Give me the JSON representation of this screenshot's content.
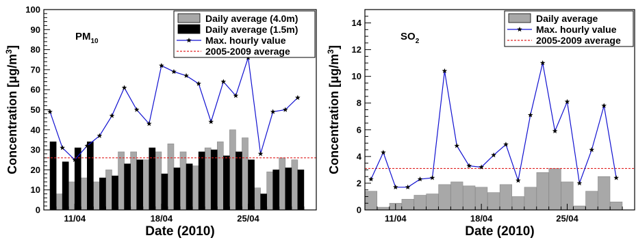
{
  "colors": {
    "bar_4m": "#a8a8a8",
    "bar_15m": "#000000",
    "line": "#1010d0",
    "avg": "#e02020"
  },
  "chart_data": [
    {
      "type": "bar",
      "species_main": "PM",
      "species_sub": "10",
      "xlabel": "Date (2010)",
      "ylabel_main": "Concentration [μg/m",
      "ylabel_sup": "3",
      "ylabel_tail": "]",
      "ylim": [
        0,
        100
      ],
      "yticks": [
        0,
        10,
        20,
        30,
        40,
        50,
        60,
        70,
        80,
        90,
        100
      ],
      "xtick_labels": [
        {
          "label": "11/04",
          "day": 11
        },
        {
          "label": "18/04",
          "day": 18
        },
        {
          "label": "25/04",
          "day": 25
        }
      ],
      "start_day": 9,
      "days": [
        9,
        10,
        11,
        12,
        13,
        14,
        15,
        16,
        17,
        18,
        19,
        20,
        21,
        22,
        23,
        24,
        25,
        26,
        27,
        28,
        29,
        30
      ],
      "legend": [
        "Daily average (4.0m)",
        "Daily average (1.5m)",
        "Max. hourly value",
        "2005-2009 average"
      ],
      "legend_position": "top-right",
      "series": [
        {
          "name": "Daily average (4.0m)",
          "kind": "bar",
          "values": [
            null,
            8,
            14,
            16,
            14,
            20,
            29,
            29,
            25,
            29,
            33,
            29,
            22,
            31,
            34,
            40,
            36,
            11,
            19,
            26,
            25,
            null
          ]
        },
        {
          "name": "Daily average (1.5m)",
          "kind": "bar",
          "values": [
            34,
            24,
            31,
            34,
            16,
            17,
            23,
            25,
            31,
            18,
            21,
            23,
            29,
            30,
            27,
            29,
            25,
            8,
            20,
            21,
            20,
            null
          ]
        },
        {
          "name": "Max. hourly value",
          "kind": "line",
          "values": [
            49,
            31,
            25,
            32,
            37,
            47,
            61,
            50,
            43,
            72,
            69,
            67,
            63,
            44,
            64,
            57,
            76,
            28,
            49,
            50,
            56,
            null
          ]
        },
        {
          "name": "2005-2009 average",
          "kind": "hline",
          "value": 26
        }
      ]
    },
    {
      "type": "bar",
      "species_main": "SO",
      "species_sub": "2",
      "xlabel": "Date (2010)",
      "ylabel_main": "Concentration [μg/m",
      "ylabel_sup": "3",
      "ylabel_tail": "]",
      "ylim": [
        0,
        15
      ],
      "yticks": [
        0,
        2,
        4,
        6,
        8,
        10,
        12,
        14
      ],
      "xtick_labels": [
        {
          "label": "11/04",
          "day": 11
        },
        {
          "label": "18/04",
          "day": 18
        },
        {
          "label": "25/04",
          "day": 25
        }
      ],
      "start_day": 9,
      "days": [
        9,
        10,
        11,
        12,
        13,
        14,
        15,
        16,
        17,
        18,
        19,
        20,
        21,
        22,
        23,
        24,
        25,
        26,
        27,
        28,
        29,
        30
      ],
      "legend": [
        "Daily average",
        "Max. hourly value",
        "2005-2009 average"
      ],
      "legend_position": "top-right",
      "series": [
        {
          "name": "Daily average",
          "kind": "bar",
          "values": [
            1.4,
            0.2,
            0.5,
            0.8,
            1.1,
            1.2,
            1.9,
            2.1,
            1.8,
            1.7,
            1.3,
            1.9,
            1.0,
            1.7,
            2.8,
            3.1,
            2.1,
            0.3,
            1.4,
            2.5,
            0.6,
            null
          ]
        },
        {
          "name": "Max. hourly value",
          "kind": "line",
          "values": [
            2.3,
            4.3,
            1.7,
            1.7,
            2.3,
            2.4,
            10.4,
            4.8,
            3.3,
            3.2,
            4.1,
            4.9,
            2.2,
            7.1,
            11.0,
            5.9,
            8.1,
            2.0,
            4.5,
            7.8,
            2.4,
            null
          ]
        },
        {
          "name": "2005-2009 average",
          "kind": "hline",
          "value": 3.1
        }
      ]
    }
  ]
}
